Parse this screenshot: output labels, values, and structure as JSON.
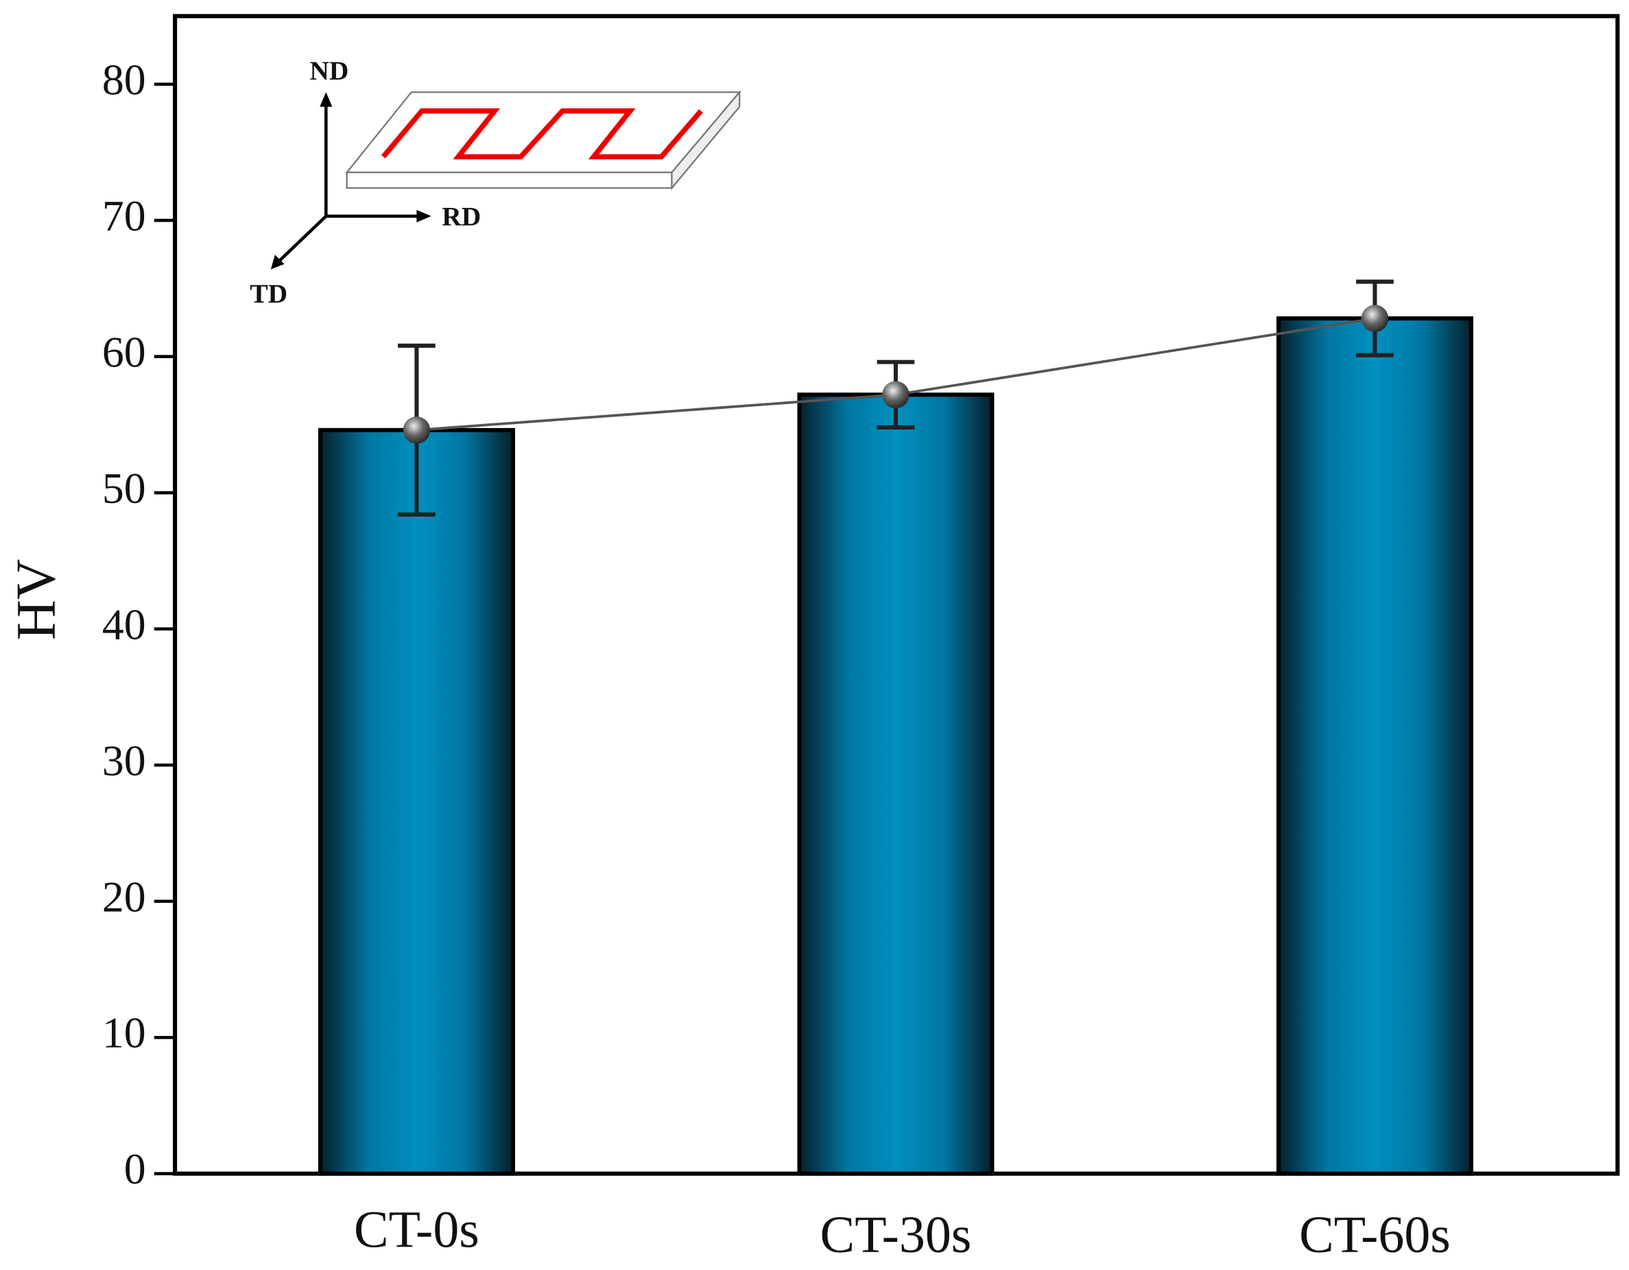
{
  "chart_data": {
    "type": "bar",
    "ylabel": "HV",
    "categories": [
      "CT-0s",
      "CT-30s",
      "CT-60s"
    ],
    "values": [
      54.6,
      57.2,
      62.8
    ],
    "errors": [
      6.2,
      2.4,
      2.7
    ],
    "color": "#0088b8",
    "line": true,
    "ylim": [
      0,
      85
    ],
    "yticks": [
      0,
      10,
      20,
      30,
      40,
      50,
      60,
      70,
      80
    ],
    "annotations": [
      "ND",
      "RD",
      "TD"
    ]
  }
}
